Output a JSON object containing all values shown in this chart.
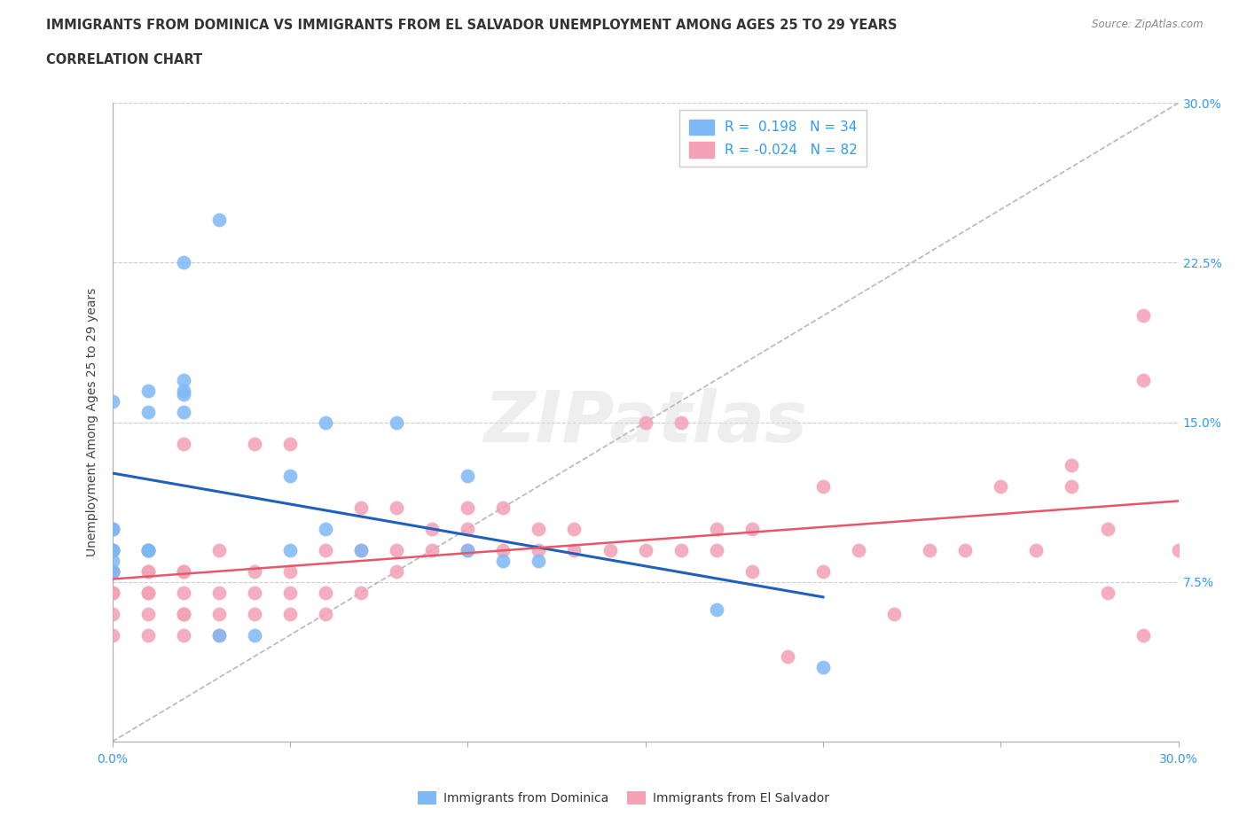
{
  "title_line1": "IMMIGRANTS FROM DOMINICA VS IMMIGRANTS FROM EL SALVADOR UNEMPLOYMENT AMONG AGES 25 TO 29 YEARS",
  "title_line2": "CORRELATION CHART",
  "source": "Source: ZipAtlas.com",
  "ylabel": "Unemployment Among Ages 25 to 29 years",
  "xlim": [
    0.0,
    0.3
  ],
  "ylim": [
    0.0,
    0.3
  ],
  "dominica_color": "#7EB8F7",
  "salvador_color": "#F4A0B5",
  "dominica_line_color": "#1E5FBF",
  "salvador_line_color": "#E8566A",
  "dominica_R": 0.198,
  "dominica_N": 34,
  "salvador_R": -0.024,
  "salvador_N": 82,
  "background_color": "#ffffff",
  "grid_color": "#cccccc",
  "tick_label_color": "#3399EE",
  "title_color": "#333333",
  "ylabel_color": "#555555",
  "legend_text_color": "#333333",
  "legend_num_color": "#3399EE",
  "watermark_color": "#e0e0e0",
  "dominica_x": [
    0.0,
    0.0,
    0.0,
    0.0,
    0.0,
    0.0,
    0.0,
    0.0,
    0.0,
    0.01,
    0.01,
    0.01,
    0.01,
    0.01,
    0.02,
    0.02,
    0.02,
    0.02,
    0.02,
    0.03,
    0.03,
    0.04,
    0.05,
    0.05,
    0.06,
    0.06,
    0.07,
    0.08,
    0.1,
    0.1,
    0.11,
    0.12,
    0.17,
    0.2
  ],
  "dominica_y": [
    0.08,
    0.08,
    0.085,
    0.09,
    0.09,
    0.09,
    0.1,
    0.1,
    0.16,
    0.09,
    0.09,
    0.09,
    0.155,
    0.165,
    0.155,
    0.163,
    0.165,
    0.17,
    0.225,
    0.245,
    0.05,
    0.05,
    0.09,
    0.125,
    0.1,
    0.15,
    0.09,
    0.15,
    0.09,
    0.125,
    0.085,
    0.085,
    0.062,
    0.035
  ],
  "salvador_x": [
    0.0,
    0.0,
    0.0,
    0.0,
    0.0,
    0.0,
    0.0,
    0.0,
    0.0,
    0.0,
    0.01,
    0.01,
    0.01,
    0.01,
    0.01,
    0.01,
    0.01,
    0.02,
    0.02,
    0.02,
    0.02,
    0.02,
    0.02,
    0.02,
    0.03,
    0.03,
    0.03,
    0.03,
    0.04,
    0.04,
    0.04,
    0.04,
    0.05,
    0.05,
    0.05,
    0.05,
    0.06,
    0.06,
    0.06,
    0.07,
    0.07,
    0.07,
    0.08,
    0.08,
    0.08,
    0.09,
    0.09,
    0.1,
    0.1,
    0.1,
    0.11,
    0.11,
    0.12,
    0.12,
    0.13,
    0.13,
    0.14,
    0.15,
    0.15,
    0.16,
    0.16,
    0.17,
    0.17,
    0.18,
    0.18,
    0.19,
    0.2,
    0.2,
    0.21,
    0.22,
    0.23,
    0.24,
    0.25,
    0.26,
    0.27,
    0.27,
    0.28,
    0.28,
    0.29,
    0.29,
    0.29,
    0.3
  ],
  "salvador_y": [
    0.05,
    0.06,
    0.07,
    0.07,
    0.08,
    0.08,
    0.08,
    0.09,
    0.09,
    0.1,
    0.05,
    0.06,
    0.07,
    0.07,
    0.08,
    0.08,
    0.09,
    0.05,
    0.06,
    0.06,
    0.07,
    0.08,
    0.08,
    0.14,
    0.05,
    0.06,
    0.07,
    0.09,
    0.06,
    0.07,
    0.08,
    0.14,
    0.06,
    0.07,
    0.08,
    0.14,
    0.06,
    0.07,
    0.09,
    0.07,
    0.09,
    0.11,
    0.08,
    0.09,
    0.11,
    0.09,
    0.1,
    0.09,
    0.1,
    0.11,
    0.09,
    0.11,
    0.09,
    0.1,
    0.09,
    0.1,
    0.09,
    0.09,
    0.15,
    0.09,
    0.15,
    0.09,
    0.1,
    0.08,
    0.1,
    0.04,
    0.08,
    0.12,
    0.09,
    0.06,
    0.09,
    0.09,
    0.12,
    0.09,
    0.12,
    0.13,
    0.07,
    0.1,
    0.05,
    0.17,
    0.2,
    0.09
  ]
}
